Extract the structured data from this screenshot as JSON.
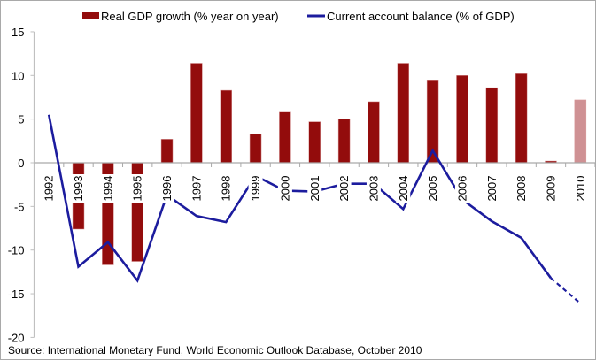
{
  "chart_data": {
    "type": "bar",
    "title": "",
    "xlabel": "",
    "ylabel": "",
    "ylim": [
      -20,
      15
    ],
    "yticks": [
      "15",
      "10",
      "5",
      "0",
      "-5",
      "-10",
      "-15",
      "-20"
    ],
    "ytick_values": [
      15,
      10,
      5,
      0,
      -5,
      -10,
      -15,
      -20
    ],
    "grid": false,
    "legend_position": "top",
    "categories": [
      "1992",
      "1993",
      "1994",
      "1995",
      "1996",
      "1997",
      "1998",
      "1999",
      "2000",
      "2001",
      "2002",
      "2003",
      "2004",
      "2005",
      "2006",
      "2007",
      "2008",
      "2009",
      "2010"
    ],
    "series": [
      {
        "name": "Real GDP growth (% year on year)",
        "kind": "bar",
        "color": "#930c0c",
        "projected_color": "#cf9194",
        "projected_from": "2010",
        "values": [
          null,
          -7.6,
          -11.7,
          -11.3,
          2.7,
          11.4,
          8.3,
          3.3,
          5.8,
          4.7,
          5.0,
          7.0,
          11.4,
          9.4,
          10.0,
          8.6,
          10.2,
          0.2,
          7.2
        ]
      },
      {
        "name": "Current account balance (% of GDP)",
        "kind": "line",
        "color": "#1c1c9e",
        "dashed_from": "2009",
        "values": [
          5.5,
          -11.9,
          -9.1,
          -13.5,
          -3.7,
          -6.1,
          -6.8,
          -1.5,
          -3.2,
          -3.3,
          -2.4,
          -2.4,
          -5.3,
          1.4,
          -4.2,
          -6.7,
          -8.6,
          -13.2,
          -16.1
        ]
      }
    ],
    "source": "Source: International Monetary Fund, World Economic Outlook Database, October 2010"
  }
}
